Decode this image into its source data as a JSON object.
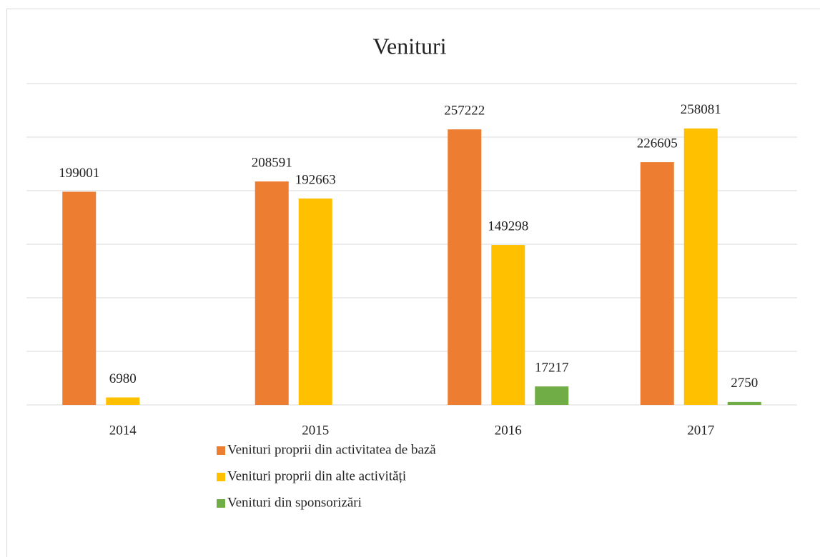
{
  "chart_data": {
    "type": "bar",
    "title": "Venituri",
    "categories": [
      "2014",
      "2015",
      "2016",
      "2017"
    ],
    "series": [
      {
        "name": "Venituri proprii din activitatea de bază",
        "color": "#ed7d31",
        "values": [
          199001,
          208591,
          257222,
          226605
        ]
      },
      {
        "name": "Venituri proprii din alte activități",
        "color": "#ffc000",
        "values": [
          6980,
          192663,
          149298,
          258081
        ]
      },
      {
        "name": "Venituri din sponsorizări",
        "color": "#70ad47",
        "values": [
          null,
          null,
          17217,
          2750
        ]
      }
    ],
    "ylim": [
      0,
      300000
    ],
    "yticks": [
      0,
      50000,
      100000,
      150000,
      200000,
      250000,
      300000
    ],
    "grid": true,
    "legend": "bottom"
  }
}
